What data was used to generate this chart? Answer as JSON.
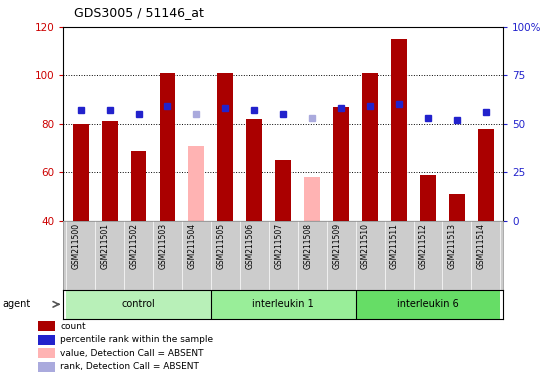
{
  "title": "GDS3005 / 51146_at",
  "samples": [
    "GSM211500",
    "GSM211501",
    "GSM211502",
    "GSM211503",
    "GSM211504",
    "GSM211505",
    "GSM211506",
    "GSM211507",
    "GSM211508",
    "GSM211509",
    "GSM211510",
    "GSM211511",
    "GSM211512",
    "GSM211513",
    "GSM211514"
  ],
  "groups": [
    {
      "name": "control",
      "color": "#b8f0b8",
      "start": 0,
      "end": 4
    },
    {
      "name": "interleukin 1",
      "color": "#99ee99",
      "start": 5,
      "end": 9
    },
    {
      "name": "interleukin 6",
      "color": "#66dd66",
      "start": 10,
      "end": 14
    }
  ],
  "bar_values": [
    80,
    81,
    69,
    101,
    71,
    101,
    82,
    65,
    58,
    87,
    101,
    115,
    59,
    51,
    78
  ],
  "bar_absent": [
    false,
    false,
    false,
    false,
    true,
    false,
    false,
    false,
    true,
    false,
    false,
    false,
    false,
    false,
    false
  ],
  "rank_values": [
    57,
    57,
    55,
    59,
    55,
    58,
    57,
    55,
    53,
    58,
    59,
    60,
    53,
    52,
    56
  ],
  "rank_absent": [
    false,
    false,
    false,
    false,
    true,
    false,
    false,
    false,
    true,
    false,
    false,
    false,
    false,
    false,
    false
  ],
  "ylim_left": [
    40,
    120
  ],
  "ylim_right": [
    0,
    100
  ],
  "yticks_left": [
    40,
    60,
    80,
    100,
    120
  ],
  "yticks_right": [
    0,
    25,
    50,
    75,
    100
  ],
  "ytick_labels_right": [
    "0",
    "25",
    "50",
    "75",
    "100%"
  ],
  "bar_color_present": "#aa0000",
  "bar_color_absent": "#ffb3b3",
  "rank_color_present": "#2222cc",
  "rank_color_absent": "#aaaadd",
  "bar_width": 0.55,
  "tick_bg_color": "#cccccc",
  "plot_bg": "#ffffff",
  "left_tick_color": "#cc0000",
  "right_tick_color": "#2222cc",
  "legend_items": [
    {
      "label": "count",
      "color": "#aa0000"
    },
    {
      "label": "percentile rank within the sample",
      "color": "#2222cc"
    },
    {
      "label": "value, Detection Call = ABSENT",
      "color": "#ffb3b3"
    },
    {
      "label": "rank, Detection Call = ABSENT",
      "color": "#aaaadd"
    }
  ],
  "group_boundaries": [
    -0.5,
    4.5,
    9.5,
    14.5
  ],
  "group_centers": [
    2.0,
    7.0,
    12.0
  ]
}
